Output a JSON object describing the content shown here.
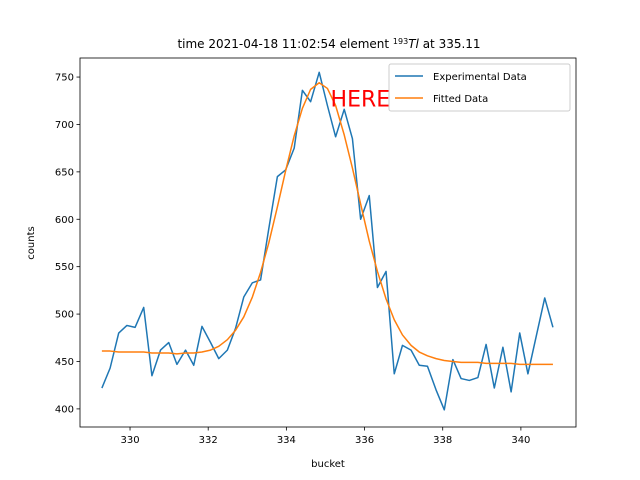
{
  "chart_data": {
    "type": "line",
    "title": [
      "time 2021-04-18 11:02:54 element ",
      "193",
      "Tl",
      " at 335.11"
    ],
    "x_label": "bucket",
    "y_label": "counts",
    "x": [
      329.28,
      329.49,
      329.71,
      329.92,
      330.13,
      330.35,
      330.56,
      330.78,
      330.99,
      331.2,
      331.42,
      331.63,
      331.84,
      332.06,
      332.27,
      332.49,
      332.7,
      332.91,
      333.13,
      333.34,
      333.55,
      333.77,
      333.98,
      334.2,
      334.41,
      334.62,
      334.84,
      335.05,
      335.26,
      335.48,
      335.69,
      335.9,
      336.12,
      336.33,
      336.55,
      336.76,
      336.97,
      337.19,
      337.4,
      337.61,
      337.83,
      338.04,
      338.26,
      338.47,
      338.68,
      338.9,
      339.11,
      339.32,
      339.54,
      339.75,
      339.97,
      340.18,
      340.4,
      340.61,
      340.82
    ],
    "series": [
      {
        "name": "Experimental Data",
        "color": "#1f77b4",
        "values": [
          422,
          443,
          480,
          488,
          486,
          507,
          435,
          462,
          470,
          447,
          462,
          446,
          487,
          470,
          453,
          462,
          485,
          518,
          533,
          536,
          590,
          645,
          652,
          675,
          736,
          724,
          755,
          720,
          687,
          716,
          685,
          600,
          625,
          528,
          545,
          437,
          467,
          462,
          446,
          445,
          420,
          399,
          452,
          432,
          430,
          433,
          468,
          422,
          465,
          418,
          480,
          437,
          478,
          517,
          486
        ]
      },
      {
        "name": "Fitted Data",
        "color": "#ff7f0e",
        "values": [
          461,
          461,
          460,
          460,
          460,
          460,
          459,
          459,
          459,
          458,
          459,
          459,
          460,
          462,
          466,
          473,
          483,
          497,
          518,
          544,
          575,
          613,
          651,
          688,
          717,
          737,
          744,
          738,
          720,
          689,
          654,
          616,
          577,
          545,
          516,
          494,
          478,
          467,
          460,
          456,
          453,
          451,
          450,
          449,
          449,
          449,
          448,
          448,
          448,
          448,
          447,
          447,
          447,
          447,
          447
        ]
      }
    ],
    "xlim": [
      328.72,
      341.41
    ],
    "ylim": [
      380.9,
      770.1
    ],
    "xticks": [
      330,
      332,
      334,
      336,
      338,
      340
    ],
    "yticks": [
      400,
      450,
      500,
      550,
      600,
      650,
      700,
      750
    ],
    "legend": "upper right",
    "annotations": [
      {
        "text": "HERE",
        "x": 335.13,
        "y": 719,
        "color": "#ff0000"
      }
    ]
  }
}
